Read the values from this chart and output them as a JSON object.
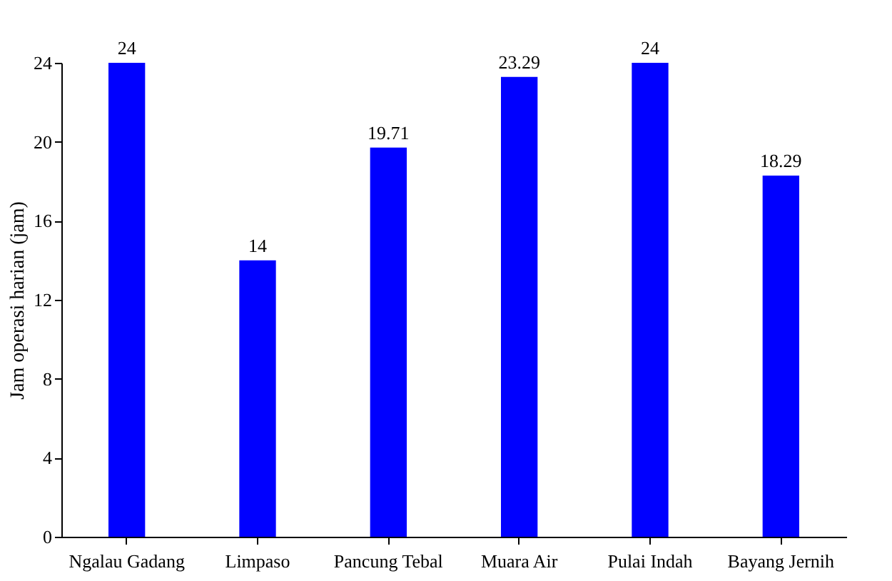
{
  "chart_data": {
    "type": "bar",
    "ylabel": "Jam operasi harian (jam)",
    "categories": [
      "Ngalau Gadang",
      "Limpaso",
      "Pancung Tebal",
      "Muara Air",
      "Pulai Indah",
      "Bayang Jernih"
    ],
    "values": [
      24,
      14,
      19.71,
      23.29,
      24,
      18.29
    ],
    "color": "#0000ff",
    "ylim": [
      0,
      24
    ],
    "yticks": [
      0,
      4,
      8,
      12,
      16,
      20,
      24
    ],
    "data_labels": true
  }
}
